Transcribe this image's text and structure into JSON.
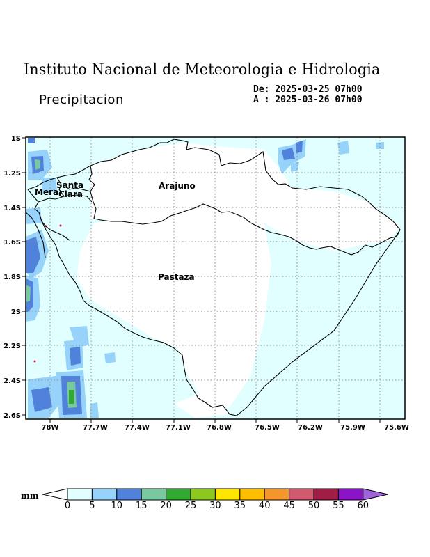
{
  "header": {
    "title": "Instituto Nacional de Meteorologia e Hidrologia",
    "subtitle": "Precipitacion",
    "date_from": "De: 2025-03-25 07h00",
    "date_to": "A : 2025-03-26 07h00"
  },
  "map": {
    "y_ticks": [
      "1S",
      "1.2S",
      "1.4S",
      "1.6S",
      "1.8S",
      "2S",
      "2.2S",
      "2.4S",
      "2.6S"
    ],
    "x_ticks": [
      "78W",
      "77.7W",
      "77.4W",
      "77.1W",
      "76.8W",
      "76.5W",
      "76.2W",
      "75.9W",
      "75.6W"
    ],
    "regions": {
      "mera": "Mera",
      "santa": "Santa",
      "clara": "Clara",
      "arajuno": "Arajuno",
      "pastaza": "Pastaza"
    }
  },
  "colorbar": {
    "unit": "mm",
    "levels": [
      "0",
      "5",
      "10",
      "15",
      "20",
      "25",
      "30",
      "35",
      "40",
      "45",
      "50",
      "55",
      "60"
    ],
    "colors": [
      "#e1ffff",
      "#96d2fa",
      "#5082dc",
      "#78c8a0",
      "#32aa32",
      "#8cc81e",
      "#ffe600",
      "#ffbe00",
      "#f5962d",
      "#d25a6e",
      "#a01e46",
      "#8c14c8",
      "#a064dc"
    ]
  }
}
